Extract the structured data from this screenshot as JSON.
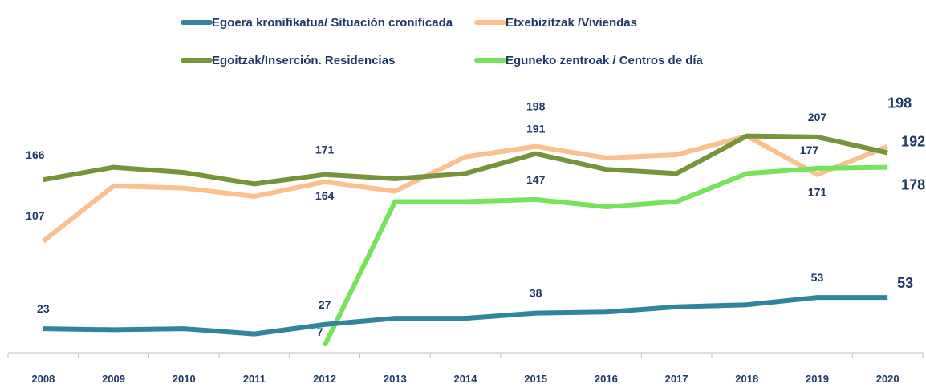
{
  "chart_data": {
    "type": "line",
    "categories": [
      "2008",
      "2009",
      "2010",
      "2011",
      "2012",
      "2013",
      "2014",
      "2015",
      "2016",
      "2017",
      "2018",
      "2019",
      "2020"
    ],
    "ylim": [
      0,
      240
    ],
    "series": [
      {
        "name": "Egoera kronifikatua/ Situación cronificada",
        "color": "#31849b",
        "values": [
          23,
          22,
          23,
          18,
          27,
          33,
          33,
          38,
          39,
          44,
          46,
          53,
          53
        ],
        "value_labels": [
          "23",
          null,
          null,
          null,
          "27",
          null,
          null,
          "38",
          null,
          null,
          null,
          "53",
          "53"
        ]
      },
      {
        "name": "Etxebizitzak /Viviendas",
        "color": "#fac090",
        "values": [
          107,
          160,
          158,
          150,
          164,
          155,
          188,
          198,
          187,
          190,
          208,
          171,
          198
        ],
        "value_labels": [
          "107",
          null,
          null,
          null,
          "164",
          null,
          null,
          "198",
          null,
          null,
          null,
          "171",
          "198"
        ]
      },
      {
        "name": "Egoitzak/Inserción. Residencias",
        "color": "#77933c",
        "values": [
          166,
          178,
          173,
          162,
          171,
          167,
          172,
          191,
          176,
          172,
          208,
          207,
          192
        ],
        "value_labels": [
          "166",
          null,
          null,
          null,
          "171",
          null,
          null,
          "191",
          null,
          null,
          null,
          "207",
          "192"
        ]
      },
      {
        "name": "Eguneko zentroak / Centros de día",
        "color": "#77e35c",
        "values": [
          null,
          null,
          null,
          null,
          7,
          145,
          145,
          147,
          140,
          145,
          172,
          177,
          178
        ],
        "value_labels": [
          null,
          null,
          null,
          null,
          "7",
          null,
          null,
          "147",
          null,
          null,
          null,
          "177",
          "178"
        ]
      }
    ]
  }
}
